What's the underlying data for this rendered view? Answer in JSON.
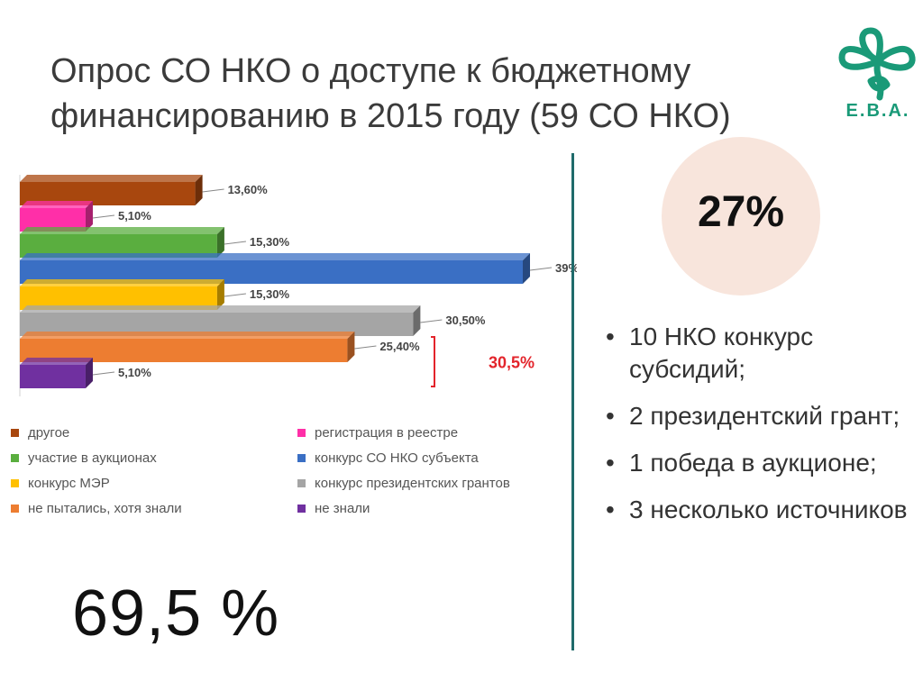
{
  "title": {
    "line1": "Опрос СО НКО о доступе к бюджетному",
    "line2": "финансированию в 2015 году (59 СО НКО)"
  },
  "logo": {
    "text": "E.B.A.",
    "color": "#1a9a78"
  },
  "chart_data": {
    "type": "bar",
    "orientation": "horizontal",
    "style": "3d",
    "categories": [
      "другое",
      "регистрация в реестре",
      "участие в аукционах",
      "конкурс СО НКО субъекта",
      "конкурс МЭР",
      "конкурс президентских грантов",
      "не пытались, хотя знали",
      "не знали"
    ],
    "values": [
      13.6,
      5.1,
      15.3,
      39,
      15.3,
      30.5,
      25.4,
      5.1
    ],
    "labels": [
      "13,60%",
      "5,10%",
      "15,30%",
      "39%",
      "15,30%",
      "30,50%",
      "25,40%",
      "5,10%"
    ],
    "colors": [
      "#a8470e",
      "#ff2fa8",
      "#5aae3f",
      "#3a6fc4",
      "#ffc000",
      "#a5a5a5",
      "#ed7d31",
      "#7030a0"
    ],
    "xlim": [
      0,
      39
    ],
    "bracket_annotation": {
      "text": "30,5%",
      "color": "#e3242b"
    },
    "legend_placement": "bottom",
    "grid": false
  },
  "legend": [
    {
      "label": "другое",
      "color": "#a8470e"
    },
    {
      "label": "регистрация в реестре",
      "color": "#ff2fa8"
    },
    {
      "label": "участие в аукционах",
      "color": "#5aae3f"
    },
    {
      "label": "конкурс СО НКО субъекта",
      "color": "#3a6fc4"
    },
    {
      "label": "конкурс МЭР",
      "color": "#ffc000"
    },
    {
      "label": "конкурс президентских грантов",
      "color": "#a5a5a5"
    },
    {
      "label": "не пытались, хотя знали",
      "color": "#ed7d31"
    },
    {
      "label": "не знали",
      "color": "#7030a0"
    }
  ],
  "big_percent": "69,5 %",
  "circle_percent": "27%",
  "bullets": [
    "10 НКО конкурс субсидий;",
    "2 президентский грант;",
    "1 победа в аукционе;",
    "3 несколько источников"
  ],
  "divider_color": "#1f6b6b"
}
